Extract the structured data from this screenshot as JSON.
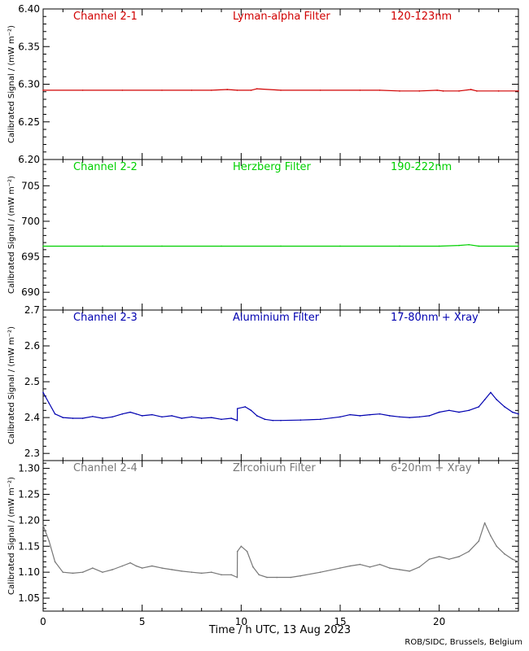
{
  "credit": "ROB/SIDC, Brussels, Belgium",
  "xlabel": "Time / h UTC, 13 Aug 2023",
  "chart_data": [
    {
      "type": "line",
      "channel": "Channel 2-1",
      "filter": "Lyman-alpha Filter",
      "band": "120-123nm",
      "color": "#d10000",
      "ylabel": "Calibrated Signal / (mW m⁻²)",
      "xlim": [
        0,
        24
      ],
      "ylim": [
        6.2,
        6.4
      ],
      "yticks": [
        "6.20",
        "6.25",
        "6.30",
        "6.35",
        "6.40"
      ],
      "xticks": [
        "0",
        "5",
        "10",
        "15",
        "20"
      ],
      "series": [
        {
          "x": [
            0,
            2,
            4,
            6,
            7.5,
            8.5,
            9.3,
            9.8,
            10.5,
            10.8,
            12,
            14,
            16,
            17,
            18,
            19,
            19.9,
            20.2,
            21,
            21.6,
            21.9,
            23,
            24
          ],
          "y": [
            6.292,
            6.292,
            6.292,
            6.292,
            6.292,
            6.292,
            6.293,
            6.292,
            6.292,
            6.294,
            6.292,
            6.292,
            6.292,
            6.292,
            6.291,
            6.291,
            6.292,
            6.291,
            6.291,
            6.293,
            6.291,
            6.291,
            6.291
          ]
        }
      ]
    },
    {
      "type": "line",
      "channel": "Channel 2-2",
      "filter": "Herzberg Filter",
      "band": "190-222nm",
      "color": "#00d000",
      "ylabel": "Calibrated Signal / (mW m⁻²)",
      "xlim": [
        0,
        24
      ],
      "ylim": [
        687.5,
        708.7
      ],
      "yticks": [
        "690",
        "695",
        "700",
        "705"
      ],
      "xticks": [
        "0",
        "5",
        "10",
        "15",
        "20"
      ],
      "series": [
        {
          "x": [
            0,
            3,
            6,
            9,
            12,
            15,
            18,
            20,
            21,
            21.5,
            22,
            24
          ],
          "y": [
            696.5,
            696.5,
            696.5,
            696.5,
            696.5,
            696.5,
            696.5,
            696.5,
            696.6,
            696.7,
            696.5,
            696.5
          ]
        }
      ]
    },
    {
      "type": "line",
      "channel": "Channel 2-3",
      "filter": "Aluminium Filter",
      "band": "17-80nm + Xray",
      "color": "#0000b0",
      "ylabel": "Calibrated Signal / (mW m⁻²)",
      "xlim": [
        0,
        24
      ],
      "ylim": [
        2.28,
        2.7
      ],
      "yticks": [
        "2.3",
        "2.4",
        "2.5",
        "2.6",
        "2.7"
      ],
      "xticks": [
        "0",
        "5",
        "10",
        "15",
        "20"
      ],
      "series": [
        {
          "x": [
            0,
            0.3,
            0.6,
            1.0,
            1.5,
            2.0,
            2.5,
            3.0,
            3.5,
            4.0,
            4.4,
            4.7,
            5.0,
            5.5,
            6.0,
            6.5,
            7.0,
            7.5,
            8.0,
            8.5,
            9.0,
            9.5,
            9.8,
            9.81,
            10.2,
            10.5,
            10.8,
            11.2,
            11.6,
            12.0,
            13.0,
            14.0,
            15.0,
            15.5,
            16.0,
            16.5,
            17.0,
            17.5,
            18.0,
            18.5,
            19.0,
            19.5,
            20.0,
            20.5,
            21.0,
            21.5,
            22.0,
            22.3,
            22.6,
            22.9,
            23.3,
            23.7,
            24.0
          ],
          "y": [
            2.47,
            2.44,
            2.41,
            2.4,
            2.398,
            2.398,
            2.403,
            2.398,
            2.402,
            2.41,
            2.415,
            2.41,
            2.405,
            2.408,
            2.402,
            2.405,
            2.398,
            2.402,
            2.398,
            2.4,
            2.395,
            2.398,
            2.392,
            2.425,
            2.43,
            2.42,
            2.405,
            2.395,
            2.392,
            2.392,
            2.393,
            2.395,
            2.402,
            2.408,
            2.405,
            2.408,
            2.41,
            2.405,
            2.402,
            2.4,
            2.402,
            2.405,
            2.415,
            2.42,
            2.415,
            2.42,
            2.43,
            2.45,
            2.47,
            2.45,
            2.43,
            2.415,
            2.41
          ]
        }
      ]
    },
    {
      "type": "line",
      "channel": "Channel 2-4",
      "filter": "Zirconium Filter",
      "band": "6-20nm + Xray",
      "color": "#777777",
      "ylabel": "Calibrated Signal / (mW m⁻²)",
      "xlim": [
        0,
        24
      ],
      "ylim": [
        1.025,
        1.315
      ],
      "yticks": [
        "1.05",
        "1.10",
        "1.15",
        "1.20",
        "1.25",
        "1.30"
      ],
      "xticks": [
        "0",
        "5",
        "10",
        "15",
        "20"
      ],
      "series": [
        {
          "x": [
            0,
            0.3,
            0.6,
            1.0,
            1.5,
            2.0,
            2.5,
            3.0,
            3.5,
            4.0,
            4.4,
            4.7,
            5.0,
            5.5,
            6.0,
            6.5,
            7.0,
            7.5,
            8.0,
            8.5,
            9.0,
            9.5,
            9.8,
            9.81,
            10.0,
            10.3,
            10.6,
            10.9,
            11.3,
            11.8,
            12.5,
            13.0,
            14.0,
            15.0,
            15.5,
            16.0,
            16.5,
            17.0,
            17.5,
            18.0,
            18.5,
            19.0,
            19.5,
            20.0,
            20.5,
            21.0,
            21.5,
            22.0,
            22.3,
            22.6,
            22.9,
            23.3,
            23.7,
            24.0
          ],
          "y": [
            1.19,
            1.16,
            1.12,
            1.1,
            1.098,
            1.1,
            1.108,
            1.1,
            1.105,
            1.112,
            1.118,
            1.112,
            1.108,
            1.112,
            1.108,
            1.105,
            1.102,
            1.1,
            1.098,
            1.1,
            1.095,
            1.095,
            1.09,
            1.14,
            1.15,
            1.14,
            1.11,
            1.095,
            1.09,
            1.09,
            1.09,
            1.093,
            1.1,
            1.108,
            1.112,
            1.115,
            1.11,
            1.115,
            1.108,
            1.105,
            1.102,
            1.11,
            1.125,
            1.13,
            1.125,
            1.13,
            1.14,
            1.16,
            1.195,
            1.17,
            1.15,
            1.135,
            1.125,
            1.12
          ]
        }
      ]
    }
  ]
}
